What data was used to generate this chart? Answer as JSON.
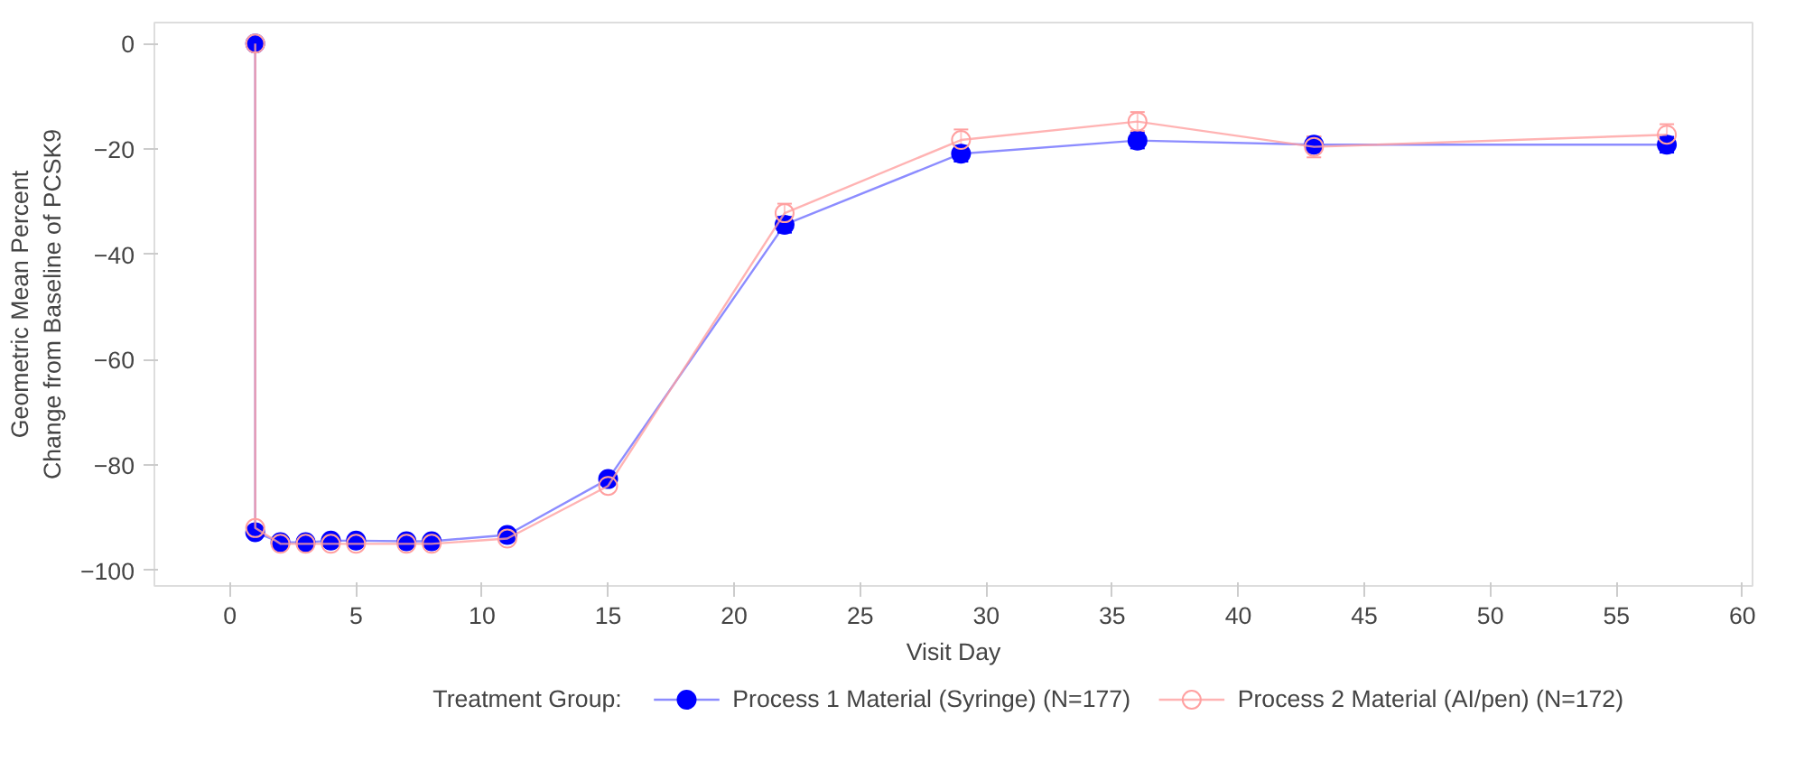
{
  "chart_data": {
    "type": "line",
    "xlabel": "Visit Day",
    "ylabel": "Geometric Mean Percent\nChange from Baseline of PCSK9",
    "legend_title": "Treatment Group:",
    "x": [
      1,
      1,
      2,
      3,
      4,
      5,
      7,
      8,
      11,
      15,
      22,
      29,
      36,
      43,
      57
    ],
    "series": [
      {
        "name": "Process 1 Material (Syringe) (N=177)",
        "color": "#0000ff",
        "values": [
          0,
          -92.8,
          -94.7,
          -94.7,
          -94.4,
          -94.4,
          -94.5,
          -94.5,
          -93.3,
          -82.7,
          -34.4,
          -20.9,
          -18.4,
          -19.2,
          -19.2
        ],
        "errors": [
          null,
          null,
          null,
          null,
          null,
          null,
          null,
          null,
          null,
          null,
          1.5,
          1.5,
          1.5,
          1.5,
          1.5
        ]
      },
      {
        "name": "Process 2 Material (AI/pen) (N=172)",
        "color": "#ffa0a0",
        "values": [
          0,
          -92,
          -95,
          -95,
          -95,
          -95,
          -95,
          -95,
          -94,
          -84,
          -32.2,
          -18.3,
          -14.8,
          -19.6,
          -17.3
        ],
        "errors": [
          null,
          null,
          null,
          null,
          null,
          null,
          null,
          null,
          null,
          null,
          1.8,
          2,
          1.8,
          2,
          2
        ]
      }
    ],
    "xlim": [
      -3,
      60.4
    ],
    "ylim": [
      -103,
      4
    ],
    "xticks": [
      0,
      5,
      10,
      15,
      20,
      25,
      30,
      35,
      40,
      45,
      50,
      55,
      60
    ],
    "yticks": [
      0,
      -20,
      -40,
      -60,
      -80,
      -100
    ],
    "marker": "circle",
    "line_style": "solid",
    "grid": false,
    "legend": "bottom"
  }
}
